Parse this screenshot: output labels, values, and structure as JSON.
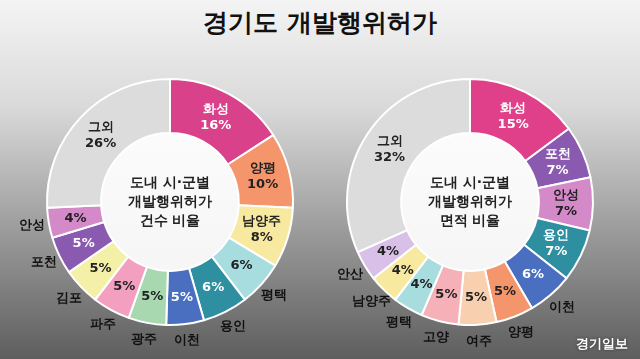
{
  "title": "경기도 개발행위허가",
  "source": "경기일보",
  "chart_data": [
    {
      "type": "doughnut",
      "title": "도내 시·군별 개발행위허가 건수 비율",
      "categories": [
        "화성",
        "양평",
        "남양주",
        "평택",
        "용인",
        "이천",
        "광주",
        "파주",
        "김포",
        "포천",
        "안성",
        "그외"
      ],
      "values": [
        16,
        10,
        8,
        6,
        6,
        5,
        5,
        5,
        5,
        5,
        4,
        26
      ],
      "value_labels": [
        "16%",
        "10%",
        "8%",
        "6%",
        "6%",
        "5%",
        "5%",
        "5%",
        "5%",
        "5%",
        "4%",
        "26%"
      ],
      "colors": [
        "#d9418a",
        "#f5956b",
        "#f7e9a0",
        "#a8dde0",
        "#2e8fa0",
        "#4a6fc0",
        "#a8d8b0",
        "#f3a0c0",
        "#f5f0a8",
        "#8a5ab0",
        "#d48ac8",
        "#dcdcdc"
      ],
      "data_labels": true
    },
    {
      "type": "doughnut",
      "title": "도내 시·군별 개발행위허가 면적 비율",
      "categories": [
        "화성",
        "포천",
        "안성",
        "용인",
        "이천",
        "양평",
        "여주",
        "고양",
        "평택",
        "남양주",
        "안산",
        "그외"
      ],
      "values": [
        15,
        7,
        7,
        7,
        6,
        5,
        5,
        5,
        4,
        4,
        4,
        32
      ],
      "value_labels": [
        "15%",
        "7%",
        "7%",
        "7%",
        "6%",
        "5%",
        "5%",
        "5%",
        "4%",
        "4%",
        "4%",
        "32%"
      ],
      "colors": [
        "#e0408a",
        "#8a5ab0",
        "#d48ac8",
        "#2e8fa0",
        "#4a6fc0",
        "#f5956b",
        "#f8d0b0",
        "#f5b0b8",
        "#a8dde0",
        "#f7e9a0",
        "#d8c0e8",
        "#dcdcdc"
      ],
      "data_labels": true
    }
  ]
}
